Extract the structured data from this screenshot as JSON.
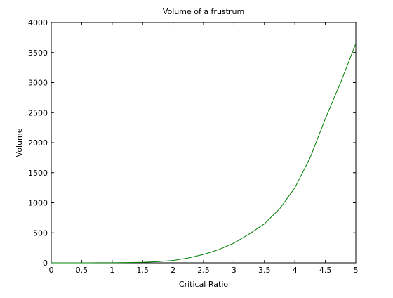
{
  "chart_data": {
    "type": "line",
    "title": "Volume of a frustrum",
    "xlabel": "Critical Ratio",
    "ylabel": "Volume",
    "xlim": [
      0,
      5
    ],
    "ylim": [
      0,
      4000
    ],
    "xticks": [
      0,
      0.5,
      1,
      1.5,
      2,
      2.5,
      3,
      3.5,
      4,
      4.5,
      5
    ],
    "xtick_labels": [
      "0",
      "0.5",
      "1",
      "1.5",
      "2",
      "2.5",
      "3",
      "3.5",
      "4",
      "4.5",
      "5"
    ],
    "yticks": [
      0,
      500,
      1000,
      1500,
      2000,
      2500,
      3000,
      3500,
      4000
    ],
    "ytick_labels": [
      "0",
      "500",
      "1000",
      "1500",
      "2000",
      "2500",
      "3000",
      "3500",
      "4000"
    ],
    "grid": false,
    "series": [
      {
        "color": "#008000",
        "x": [
          0,
          0.25,
          0.5,
          0.75,
          1,
          1.25,
          1.5,
          1.75,
          2,
          2.25,
          2.5,
          2.75,
          3,
          3.25,
          3.5,
          3.75,
          4,
          4.25,
          4.5,
          4.75,
          5
        ],
        "values": [
          0,
          0,
          0,
          1,
          2,
          5,
          9,
          20,
          40,
          80,
          140,
          220,
          330,
          480,
          650,
          900,
          1250,
          1750,
          2400,
          3000,
          3650
        ]
      }
    ]
  }
}
